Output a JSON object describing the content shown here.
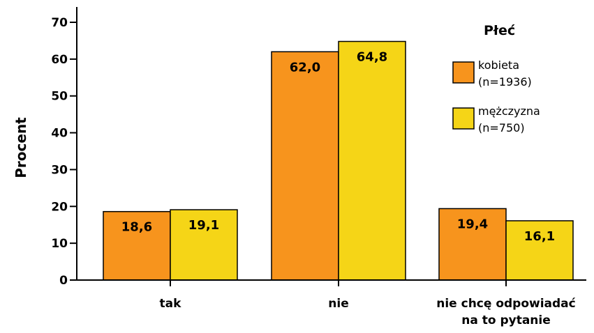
{
  "chart_data": {
    "type": "bar",
    "ylabel": "Procent",
    "ylim": [
      0,
      70
    ],
    "yticks": [
      0,
      10,
      20,
      30,
      40,
      50,
      60,
      70
    ],
    "categories": [
      [
        "tak"
      ],
      [
        "nie"
      ],
      [
        "nie chcę odpowiadać",
        "na to pytanie"
      ]
    ],
    "series": [
      {
        "name": [
          "kobieta",
          "(n=1936)"
        ],
        "color": "#F7941D",
        "values": [
          18.6,
          62.0,
          19.4
        ],
        "labels": [
          "18,6",
          "62,0",
          "19,4"
        ]
      },
      {
        "name": [
          "mężczyzna",
          "(n=750)"
        ],
        "color": "#F5D517",
        "values": [
          19.1,
          64.8,
          16.1
        ],
        "labels": [
          "19,1",
          "64,8",
          "16,1"
        ]
      }
    ],
    "legend": {
      "title": "Płeć",
      "position": "top-right"
    },
    "grid": false
  }
}
